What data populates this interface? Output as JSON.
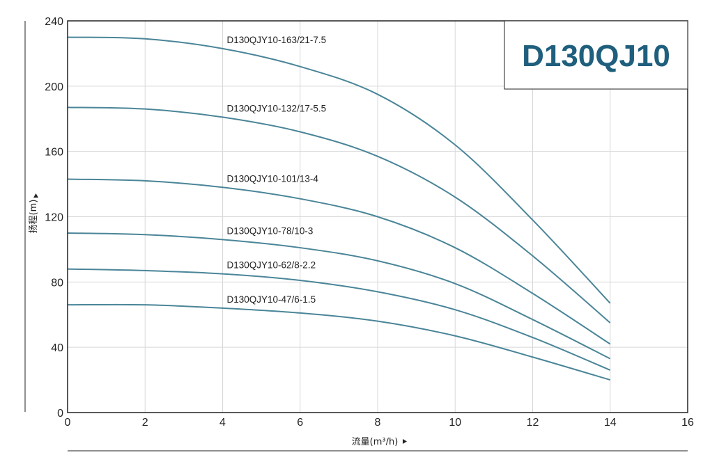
{
  "chart_data": {
    "type": "line",
    "title": "D130QJ10",
    "xlabel": "流量(m³/h)",
    "ylabel": "扬程(m)",
    "xlim": [
      0,
      16
    ],
    "ylim": [
      0,
      240
    ],
    "xticks": [
      "0",
      "2",
      "4",
      "6",
      "8",
      "10",
      "12",
      "14",
      "16"
    ],
    "yticks": [
      "0",
      "40",
      "80",
      "120",
      "160",
      "200",
      "240"
    ],
    "grid": true,
    "series": [
      {
        "name": "D130QJY10-163/21-7.5",
        "x": [
          0,
          2,
          4,
          6,
          8,
          10,
          12,
          14
        ],
        "y": [
          230,
          229,
          223,
          212,
          195,
          164,
          118,
          67
        ]
      },
      {
        "name": "D130QJY10-132/17-5.5",
        "x": [
          0,
          2,
          4,
          6,
          8,
          10,
          12,
          14
        ],
        "y": [
          187,
          186,
          181,
          172,
          157,
          132,
          96,
          55
        ]
      },
      {
        "name": "D130QJY10-101/13-4",
        "x": [
          0,
          2,
          4,
          6,
          8,
          10,
          12,
          14
        ],
        "y": [
          143,
          142,
          138,
          131,
          120,
          101,
          73,
          42
        ]
      },
      {
        "name": "D130QJY10-78/10-3",
        "x": [
          0,
          2,
          4,
          6,
          8,
          10,
          12,
          14
        ],
        "y": [
          110,
          109,
          106,
          101,
          93,
          79,
          57,
          33
        ]
      },
      {
        "name": "D130QJY10-62/8-2.2",
        "x": [
          0,
          2,
          4,
          6,
          8,
          10,
          12,
          14
        ],
        "y": [
          88,
          87,
          85,
          81,
          74,
          63,
          46,
          26
        ]
      },
      {
        "name": "D130QJY10-47/6-1.5",
        "x": [
          0,
          2,
          4,
          6,
          8,
          10,
          12,
          14
        ],
        "y": [
          66,
          66,
          64,
          61,
          56,
          47,
          34,
          20
        ]
      }
    ]
  },
  "colors": {
    "series_line": "#4a8598",
    "title": "#1f5f7d",
    "grid": "#d8d8d8",
    "axis": "#222222"
  }
}
